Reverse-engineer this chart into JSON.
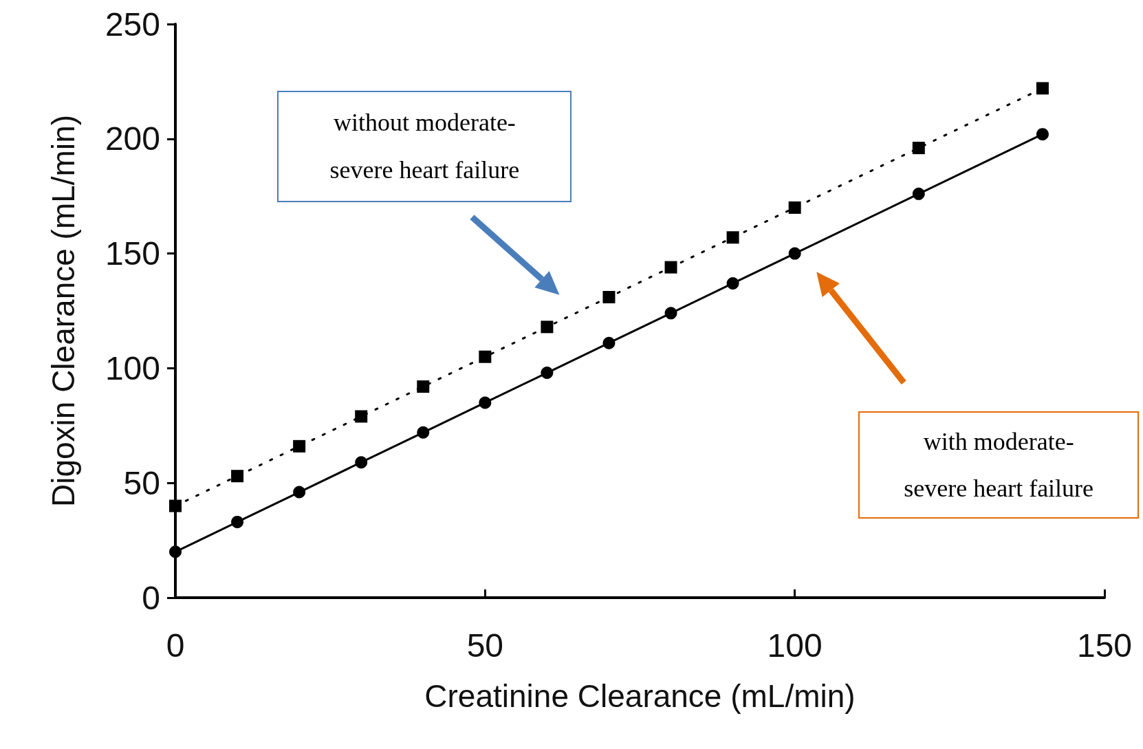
{
  "chart_data": {
    "type": "line",
    "xlabel": "Creatinine Clearance (mL/min)",
    "ylabel": "Digoxin Clearance (mL/min)",
    "x": [
      0,
      10,
      20,
      30,
      40,
      50,
      60,
      70,
      80,
      90,
      100,
      120,
      140
    ],
    "series": [
      {
        "color": "#000000",
        "marker": "square",
        "line_style": "dotted",
        "values": [
          40,
          53,
          66,
          79,
          92,
          105,
          118,
          131,
          144,
          157,
          170,
          196,
          222
        ]
      },
      {
        "color": "#000000",
        "marker": "circle",
        "line_style": "solid",
        "values": [
          20,
          33,
          46,
          59,
          72,
          85,
          98,
          111,
          124,
          137,
          150,
          176,
          202
        ]
      }
    ],
    "xlim": [
      0,
      150
    ],
    "xticks": [
      0,
      50,
      100,
      150
    ],
    "ylim": [
      0,
      250
    ],
    "yticks": [
      0,
      50,
      100,
      150,
      200,
      250
    ],
    "grid": false,
    "annotations": [
      "without moderate-severe heart failure",
      "with moderate-severe heart failure"
    ]
  }
}
